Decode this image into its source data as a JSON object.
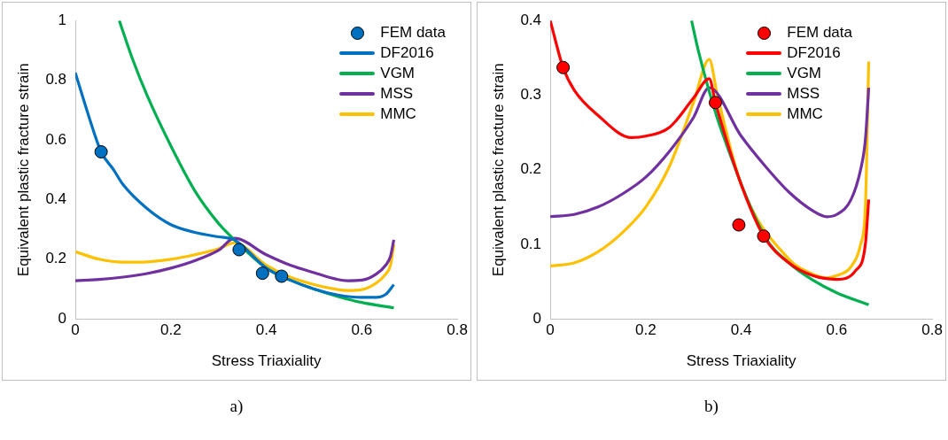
{
  "chart_data": [
    {
      "type": "line",
      "xlabel": "Stress Triaxiality",
      "ylabel": "Equivalent plastic fracture strain",
      "xlim": [
        0,
        0.8
      ],
      "xticks": [
        0,
        0.2,
        0.4,
        0.6,
        0.8
      ],
      "ylim": [
        0,
        1
      ],
      "yticks": [
        0,
        0.2,
        0.4,
        0.6,
        0.8,
        1
      ],
      "grid": false,
      "legend": "top right",
      "annotations": [
        "a)"
      ],
      "series": [
        {
          "name": "FEM data",
          "type": "scatter",
          "marker": "circle",
          "color": "#0070c0",
          "x": [
            0.054,
            0.343,
            0.392,
            0.432
          ],
          "values": [
            0.56,
            0.232,
            0.153,
            0.143
          ]
        },
        {
          "name": "DF2016",
          "type": "line",
          "marker": "none",
          "color": "#0070c0",
          "x": [
            0,
            0.03,
            0.054,
            0.08,
            0.1,
            0.15,
            0.2,
            0.25,
            0.3,
            0.333,
            0.4,
            0.45,
            0.5,
            0.55,
            0.6,
            0.63,
            0.65,
            0.667
          ],
          "values": [
            0.825,
            0.67,
            0.56,
            0.5,
            0.45,
            0.37,
            0.316,
            0.29,
            0.275,
            0.265,
            0.17,
            0.13,
            0.1,
            0.08,
            0.072,
            0.072,
            0.082,
            0.115
          ]
        },
        {
          "name": "VGM",
          "type": "line",
          "marker": "none",
          "color": "#00b050",
          "x": [
            0.092,
            0.12,
            0.15,
            0.2,
            0.25,
            0.3,
            0.333,
            0.4,
            0.45,
            0.5,
            0.55,
            0.6,
            0.667
          ],
          "values": [
            1,
            0.87,
            0.75,
            0.58,
            0.43,
            0.32,
            0.265,
            0.17,
            0.13,
            0.1,
            0.075,
            0.055,
            0.037
          ]
        },
        {
          "name": "MSS",
          "type": "line",
          "marker": "none",
          "color": "#7030a0",
          "x": [
            0,
            0.05,
            0.1,
            0.15,
            0.2,
            0.25,
            0.3,
            0.333,
            0.4,
            0.45,
            0.5,
            0.55,
            0.57,
            0.6,
            0.63,
            0.65,
            0.66,
            0.667
          ],
          "values": [
            0.128,
            0.132,
            0.14,
            0.152,
            0.17,
            0.195,
            0.23,
            0.27,
            0.215,
            0.18,
            0.155,
            0.132,
            0.128,
            0.13,
            0.15,
            0.18,
            0.21,
            0.265
          ]
        },
        {
          "name": "MMC",
          "type": "line",
          "marker": "none",
          "color": "#ffc000",
          "x": [
            0,
            0.05,
            0.1,
            0.13,
            0.2,
            0.25,
            0.3,
            0.333,
            0.4,
            0.45,
            0.5,
            0.55,
            0.57,
            0.6,
            0.63,
            0.65,
            0.66,
            0.667
          ],
          "values": [
            0.225,
            0.2,
            0.19,
            0.19,
            0.2,
            0.215,
            0.235,
            0.255,
            0.18,
            0.14,
            0.115,
            0.098,
            0.095,
            0.098,
            0.12,
            0.15,
            0.18,
            0.25
          ]
        }
      ]
    },
    {
      "type": "line",
      "xlabel": "Stress Triaxiality",
      "ylabel": "Equivalent plastic fracture strain",
      "xlim": [
        0,
        0.8
      ],
      "xticks": [
        0,
        0.2,
        0.4,
        0.6,
        0.8
      ],
      "ylim": [
        0,
        0.4
      ],
      "yticks": [
        0,
        0.1,
        0.2,
        0.3,
        0.4
      ],
      "grid": false,
      "legend": "top right",
      "annotations": [
        "b)"
      ],
      "series": [
        {
          "name": "FEM data",
          "type": "scatter",
          "marker": "circle",
          "color": "#ff0000",
          "x": [
            0.027,
            0.346,
            0.395,
            0.447
          ],
          "values": [
            0.337,
            0.29,
            0.126,
            0.111
          ]
        },
        {
          "name": "DF2016",
          "type": "line",
          "marker": "none",
          "color": "#ff0000",
          "x": [
            0,
            0.027,
            0.05,
            0.1,
            0.17,
            0.2,
            0.25,
            0.3,
            0.333,
            0.346,
            0.4,
            0.447,
            0.5,
            0.55,
            0.6,
            0.64,
            0.66,
            0.667
          ],
          "values": [
            0.4,
            0.337,
            0.307,
            0.273,
            0.243,
            0.245,
            0.257,
            0.296,
            0.322,
            0.29,
            0.18,
            0.111,
            0.075,
            0.058,
            0.053,
            0.065,
            0.1,
            0.16
          ]
        },
        {
          "name": "VGM",
          "type": "line",
          "marker": "none",
          "color": "#00b050",
          "x": [
            0.296,
            0.31,
            0.333,
            0.36,
            0.45,
            0.5,
            0.55,
            0.6,
            0.667
          ],
          "values": [
            0.4,
            0.36,
            0.305,
            0.25,
            0.11,
            0.075,
            0.052,
            0.035,
            0.019
          ]
        },
        {
          "name": "MSS",
          "type": "line",
          "marker": "none",
          "color": "#7030a0",
          "x": [
            0,
            0.05,
            0.1,
            0.15,
            0.2,
            0.25,
            0.3,
            0.333,
            0.4,
            0.45,
            0.5,
            0.55,
            0.58,
            0.6,
            0.63,
            0.65,
            0.66,
            0.667
          ],
          "values": [
            0.137,
            0.14,
            0.15,
            0.167,
            0.19,
            0.225,
            0.27,
            0.31,
            0.245,
            0.205,
            0.17,
            0.145,
            0.137,
            0.14,
            0.16,
            0.2,
            0.24,
            0.31
          ]
        },
        {
          "name": "MMC",
          "type": "line",
          "marker": "none",
          "color": "#ffc000",
          "x": [
            0,
            0.05,
            0.1,
            0.15,
            0.2,
            0.25,
            0.3,
            0.333,
            0.35,
            0.4,
            0.5,
            0.55,
            0.58,
            0.6,
            0.63,
            0.65,
            0.66,
            0.667
          ],
          "values": [
            0.071,
            0.075,
            0.09,
            0.115,
            0.15,
            0.205,
            0.29,
            0.348,
            0.3,
            0.18,
            0.08,
            0.06,
            0.055,
            0.058,
            0.07,
            0.1,
            0.15,
            0.345
          ]
        }
      ]
    }
  ]
}
